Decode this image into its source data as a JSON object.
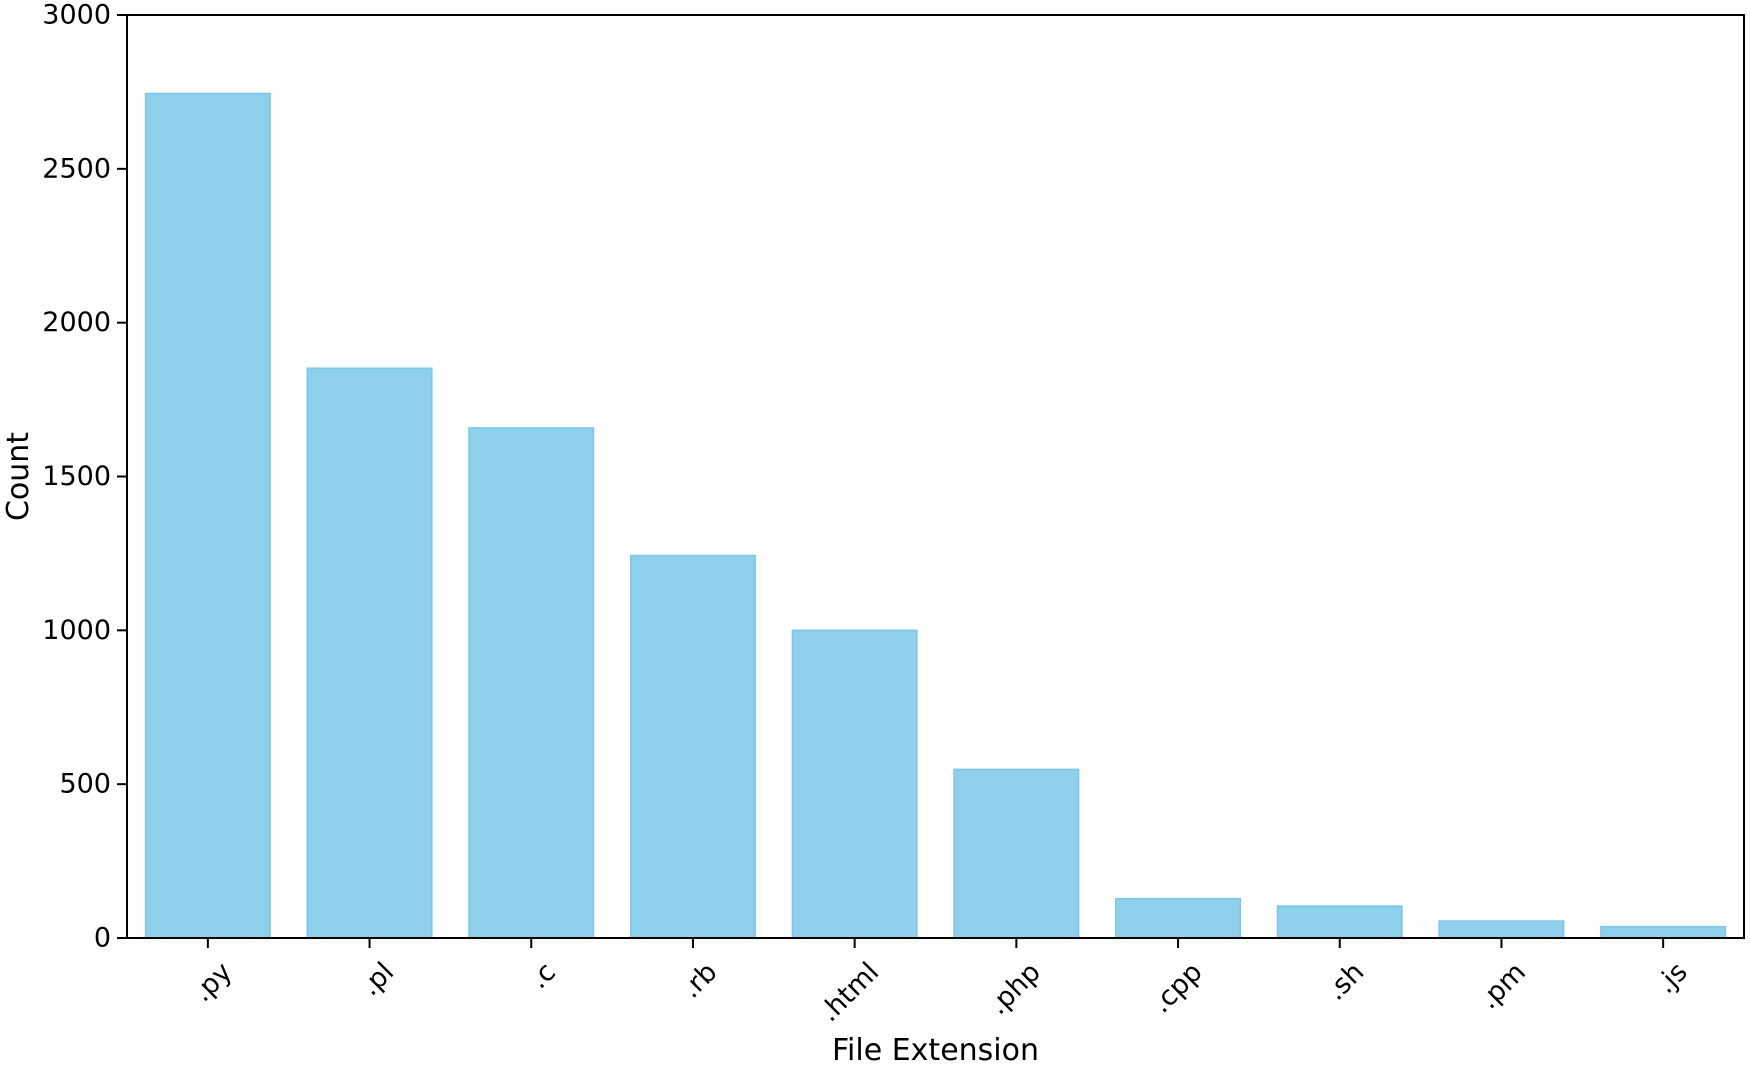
{
  "chart_data": {
    "type": "bar",
    "title": "",
    "xlabel": "File Extension",
    "ylabel": "Count",
    "categories": [
      ".py",
      ".pl",
      ".c",
      ".rb",
      ".html",
      ".php",
      ".cpp",
      ".sh",
      ".pm",
      ".js"
    ],
    "values": [
      2745,
      1852,
      1658,
      1243,
      1000,
      548,
      128,
      104,
      55,
      37
    ],
    "ylim": [
      0,
      3000
    ],
    "yticks": [
      0,
      500,
      1000,
      1500,
      2000,
      2500,
      3000
    ],
    "grid": false,
    "legend": "none",
    "bar_color": "#8ecfec",
    "bar_edge_color": "#7cc6e8"
  }
}
